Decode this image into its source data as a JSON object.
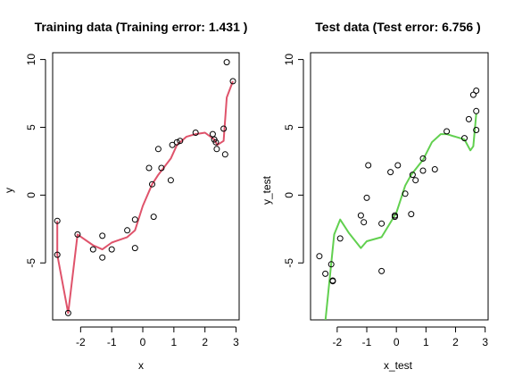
{
  "chart_data": [
    {
      "type": "scatter",
      "title": "Training data (Training error: 1.431 )",
      "xlabel": "x",
      "ylabel": "y",
      "xlim": [
        -2.9,
        3.1
      ],
      "ylim": [
        -9.2,
        10.5
      ],
      "x_ticks": [
        -2,
        -1,
        0,
        1,
        2,
        3
      ],
      "y_ticks": [
        -5,
        0,
        5,
        10
      ],
      "line_color": "#DF536B",
      "points": [
        [
          -2.75,
          -1.9
        ],
        [
          -2.75,
          -4.4
        ],
        [
          -2.4,
          -8.7
        ],
        [
          -2.1,
          -2.9
        ],
        [
          -1.6,
          -4.0
        ],
        [
          -1.3,
          -4.6
        ],
        [
          -1.3,
          -3.0
        ],
        [
          -1.0,
          -4.0
        ],
        [
          -0.5,
          -2.6
        ],
        [
          -0.25,
          -1.8
        ],
        [
          -0.25,
          -3.9
        ],
        [
          0.2,
          2.0
        ],
        [
          0.3,
          0.8
        ],
        [
          0.35,
          -1.6
        ],
        [
          0.5,
          3.4
        ],
        [
          0.6,
          2.0
        ],
        [
          0.9,
          1.1
        ],
        [
          0.95,
          3.7
        ],
        [
          1.1,
          3.9
        ],
        [
          1.2,
          4.0
        ],
        [
          1.7,
          4.6
        ],
        [
          2.25,
          4.5
        ],
        [
          2.3,
          4.1
        ],
        [
          2.35,
          3.9
        ],
        [
          2.38,
          3.4
        ],
        [
          2.6,
          4.9
        ],
        [
          2.65,
          3.0
        ],
        [
          2.7,
          9.8
        ],
        [
          2.9,
          8.4
        ]
      ],
      "fit_line": [
        [
          -2.75,
          -1.9
        ],
        [
          -2.75,
          -4.4
        ],
        [
          -2.4,
          -8.7
        ],
        [
          -2.1,
          -2.9
        ],
        [
          -1.6,
          -3.7
        ],
        [
          -1.3,
          -4.0
        ],
        [
          -1.0,
          -3.5
        ],
        [
          -0.5,
          -3.1
        ],
        [
          -0.25,
          -2.6
        ],
        [
          0.0,
          -0.8
        ],
        [
          0.3,
          0.8
        ],
        [
          0.5,
          1.5
        ],
        [
          0.9,
          2.7
        ],
        [
          1.1,
          3.7
        ],
        [
          1.4,
          4.3
        ],
        [
          1.7,
          4.5
        ],
        [
          2.0,
          4.6
        ],
        [
          2.3,
          4.1
        ],
        [
          2.4,
          3.7
        ],
        [
          2.6,
          4.0
        ],
        [
          2.7,
          7.2
        ],
        [
          2.9,
          8.4
        ]
      ]
    },
    {
      "type": "scatter",
      "title": "Test data (Test error: 6.756 )",
      "xlabel": "x_test",
      "ylabel": "y_test",
      "xlim": [
        -2.9,
        3.1
      ],
      "ylim": [
        -9.2,
        10.5
      ],
      "x_ticks": [
        -2,
        -1,
        0,
        1,
        2,
        3
      ],
      "y_ticks": [
        -5,
        0,
        5,
        10
      ],
      "line_color": "#61D04F",
      "points": [
        [
          -2.6,
          -4.5
        ],
        [
          -2.4,
          -5.8
        ],
        [
          -2.2,
          -5.1
        ],
        [
          -2.15,
          -6.3
        ],
        [
          -2.15,
          -6.35
        ],
        [
          -1.9,
          -3.2
        ],
        [
          -1.2,
          -1.5
        ],
        [
          -1.1,
          -2.0
        ],
        [
          -1.0,
          -0.2
        ],
        [
          -0.95,
          2.2
        ],
        [
          -0.5,
          -2.1
        ],
        [
          -0.5,
          -5.6
        ],
        [
          -0.2,
          1.7
        ],
        [
          -0.05,
          -1.5
        ],
        [
          -0.05,
          -1.6
        ],
        [
          0.05,
          2.2
        ],
        [
          0.3,
          0.1
        ],
        [
          0.5,
          -1.4
        ],
        [
          0.55,
          1.5
        ],
        [
          0.65,
          1.1
        ],
        [
          0.9,
          1.8
        ],
        [
          0.9,
          2.7
        ],
        [
          1.3,
          1.9
        ],
        [
          1.7,
          4.7
        ],
        [
          2.3,
          4.2
        ],
        [
          2.45,
          5.6
        ],
        [
          2.6,
          7.4
        ],
        [
          2.7,
          7.7
        ],
        [
          2.7,
          6.2
        ],
        [
          2.7,
          4.8
        ]
      ],
      "fit_line": [
        [
          -2.4,
          -9.3
        ],
        [
          -2.1,
          -2.9
        ],
        [
          -1.9,
          -1.8
        ],
        [
          -1.6,
          -2.8
        ],
        [
          -1.2,
          -3.9
        ],
        [
          -1.0,
          -3.4
        ],
        [
          -0.5,
          -3.1
        ],
        [
          0.0,
          -1.3
        ],
        [
          0.3,
          0.7
        ],
        [
          0.5,
          1.5
        ],
        [
          0.9,
          2.6
        ],
        [
          1.2,
          3.9
        ],
        [
          1.5,
          4.5
        ],
        [
          1.7,
          4.5
        ],
        [
          2.0,
          4.3
        ],
        [
          2.3,
          4.1
        ],
        [
          2.5,
          3.3
        ],
        [
          2.6,
          3.6
        ],
        [
          2.7,
          6.0
        ]
      ]
    }
  ]
}
